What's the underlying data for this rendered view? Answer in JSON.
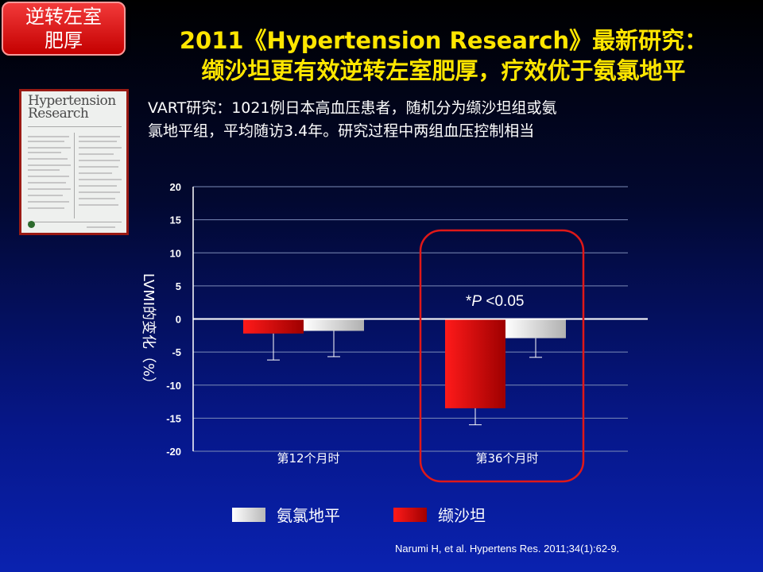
{
  "tag": {
    "line1": "逆转左室",
    "line2": "肥厚"
  },
  "title": {
    "line1": "2011《Hypertension Research》最新研究：",
    "line2": "缬沙坦更有效逆转左室肥厚，疗效优于氨氯地平"
  },
  "cover": {
    "journal_line1": "Hypertension",
    "journal_line2": "Research"
  },
  "intro": {
    "line1": "VART研究：1021例日本高血压患者，随机分为缬沙坦组或氨",
    "line2": "氯地平组，平均随访3.4年。研究过程中两组血压控制相当"
  },
  "colors": {
    "valsartan": "#d30000",
    "amlodipine": "#d8d8d8",
    "highlight": "#e01818",
    "grid": "#7c8bb8",
    "title": "#ffe600"
  },
  "chart_data": {
    "type": "bar",
    "ylabel": "LVMI的变化（%）",
    "ylim": [
      -20,
      20
    ],
    "yticks": [
      20,
      15,
      10,
      5,
      0,
      -5,
      -10,
      -15,
      -20
    ],
    "grid": true,
    "categories": [
      "第12个月时",
      "第36个月时"
    ],
    "series": [
      {
        "name": "缬沙坦",
        "values": [
          -2.2,
          -13.5
        ],
        "error": [
          4.0,
          2.5
        ]
      },
      {
        "name": "氨氯地平",
        "values": [
          -1.8,
          -2.9
        ],
        "error": [
          3.9,
          2.9
        ]
      }
    ],
    "annotation": {
      "prefix": "*",
      "italic": "P",
      "suffix": " <0.05",
      "category": "第36个月时"
    },
    "legend": {
      "position": "bottom",
      "order": [
        "氨氯地平",
        "缬沙坦"
      ]
    }
  },
  "citation": "Narumi H, et al. Hypertens Res. 2011;34(1):62-9."
}
